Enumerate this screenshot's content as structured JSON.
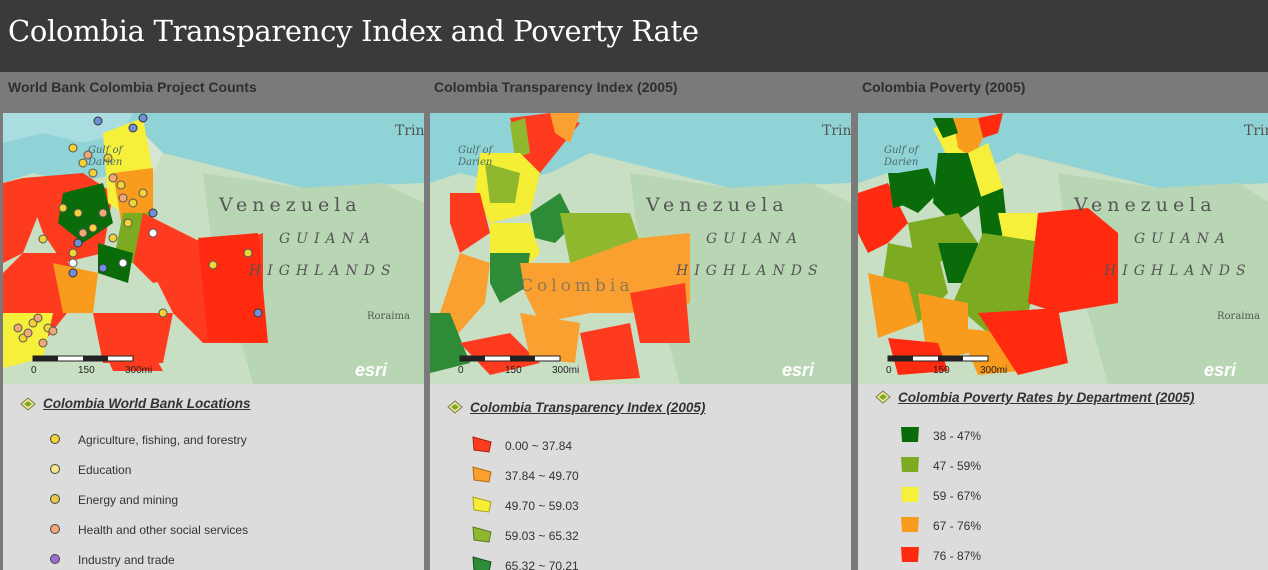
{
  "page": {
    "title": "Colombia Transparency Index and Poverty Rate"
  },
  "panels": [
    {
      "title": "World Bank Colombia Project Counts",
      "map": {
        "labels": {
          "gulf": "Gulf of",
          "darien": "Darien",
          "venezuela": "Venezuela",
          "guiana": "GUIANA",
          "highlands": "HIGHLANDS",
          "roraima": "Roraima",
          "trin": "Trin"
        },
        "scale": {
          "zero": "0",
          "mid": "150",
          "end": "300mi"
        },
        "logo": "esri"
      },
      "legend": {
        "title": "Colombia World Bank Locations",
        "items": [
          {
            "label": "Agriculture, fishing, and forestry",
            "color": "#f2d234"
          },
          {
            "label": "Education",
            "color": "#f4e58a"
          },
          {
            "label": "Energy and mining",
            "color": "#e8c64a"
          },
          {
            "label": "Health and other social services",
            "color": "#f0a877"
          },
          {
            "label": "Industry and trade",
            "color": "#9b6fd0"
          }
        ]
      }
    },
    {
      "title": "Colombia Transparency Index (2005)",
      "map": {
        "labels": {
          "gulf": "Gulf of",
          "darien": "Darien",
          "venezuela": "Venezuela",
          "guiana": "GUIANA",
          "highlands": "HIGHLANDS",
          "colombia": "Colombia",
          "trin": "Trin"
        },
        "scale": {
          "zero": "0",
          "mid": "150",
          "end": "300mi"
        },
        "logo": "esri"
      },
      "legend": {
        "title": "Colombia Transparency Index (2005)",
        "items": [
          {
            "label": "0.00 ~ 37.84",
            "color": "#ff3b1f"
          },
          {
            "label": "37.84 ~ 49.70",
            "color": "#f9a031"
          },
          {
            "label": "49.70 ~ 59.03",
            "color": "#f4ee34"
          },
          {
            "label": "59.03 ~ 65.32",
            "color": "#8fb82e"
          },
          {
            "label": "65.32 ~ 70.21",
            "color": "#2e8b36"
          }
        ]
      }
    },
    {
      "title": "Colombia Poverty (2005)",
      "map": {
        "labels": {
          "gulf": "Gulf of",
          "darien": "Darien",
          "venezuela": "Venezuela",
          "guiana": "GUIANA",
          "highlands": "HIGHLANDS",
          "roraima": "Roraima",
          "trin": "Trin"
        },
        "scale": {
          "zero": "0",
          "mid": "150",
          "end": "300mi"
        },
        "logo": "esri"
      },
      "legend": {
        "title": "Colombia Poverty Rates by Department (2005)",
        "items": [
          {
            "label": "38 - 47%",
            "color": "#0a6b0a"
          },
          {
            "label": "47 - 59%",
            "color": "#7cab22"
          },
          {
            "label": "59 - 67%",
            "color": "#f6f03a"
          },
          {
            "label": "67 - 76%",
            "color": "#f99b1c"
          },
          {
            "label": "76 - 87%",
            "color": "#ff2a10"
          }
        ]
      }
    }
  ]
}
